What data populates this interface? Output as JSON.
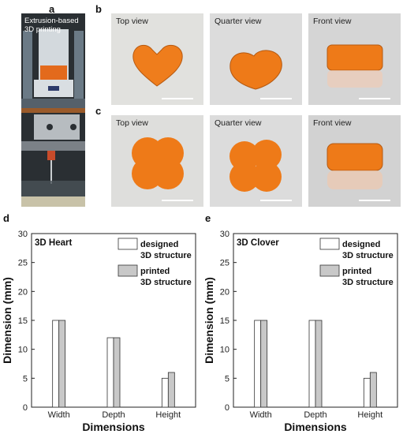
{
  "panels": {
    "a": "a",
    "b": "b",
    "c": "c",
    "d": "d",
    "e": "e"
  },
  "printer_photo": {
    "label_line1": "Extrusion-based",
    "label_line2": "3D printing"
  },
  "photos": {
    "row_b": [
      "Top view",
      "Quarter view",
      "Front view"
    ],
    "row_c": [
      "Top view",
      "Quarter view",
      "Front view"
    ]
  },
  "colors": {
    "gel_orange": "#f07d1a",
    "printed_bar": "#c8c8c8",
    "designed_bar": "#ffffff",
    "photo_bg": "#d9d9d9"
  },
  "chart_data": [
    {
      "type": "bar",
      "title": "3D Heart",
      "xlabel": "Dimensions",
      "ylabel": "Dimension (mm)",
      "ylim": [
        0,
        30
      ],
      "yticks": [
        0,
        5,
        10,
        15,
        20,
        25,
        30
      ],
      "categories": [
        "Width",
        "Depth",
        "Height"
      ],
      "series": [
        {
          "name": "designed 3D structure",
          "values": [
            15,
            12,
            5
          ]
        },
        {
          "name": "printed 3D structure",
          "values": [
            15,
            12,
            6
          ]
        }
      ],
      "legend": "top-right",
      "grid": false
    },
    {
      "type": "bar",
      "title": "3D Clover",
      "xlabel": "Dimensions",
      "ylabel": "Dimension (mm)",
      "ylim": [
        0,
        30
      ],
      "yticks": [
        0,
        5,
        10,
        15,
        20,
        25,
        30
      ],
      "categories": [
        "Width",
        "Depth",
        "Height"
      ],
      "series": [
        {
          "name": "designed 3D structure",
          "values": [
            15,
            15,
            5
          ]
        },
        {
          "name": "printed 3D structure",
          "values": [
            15,
            15,
            6
          ]
        }
      ],
      "legend": "top-right",
      "grid": false
    }
  ]
}
